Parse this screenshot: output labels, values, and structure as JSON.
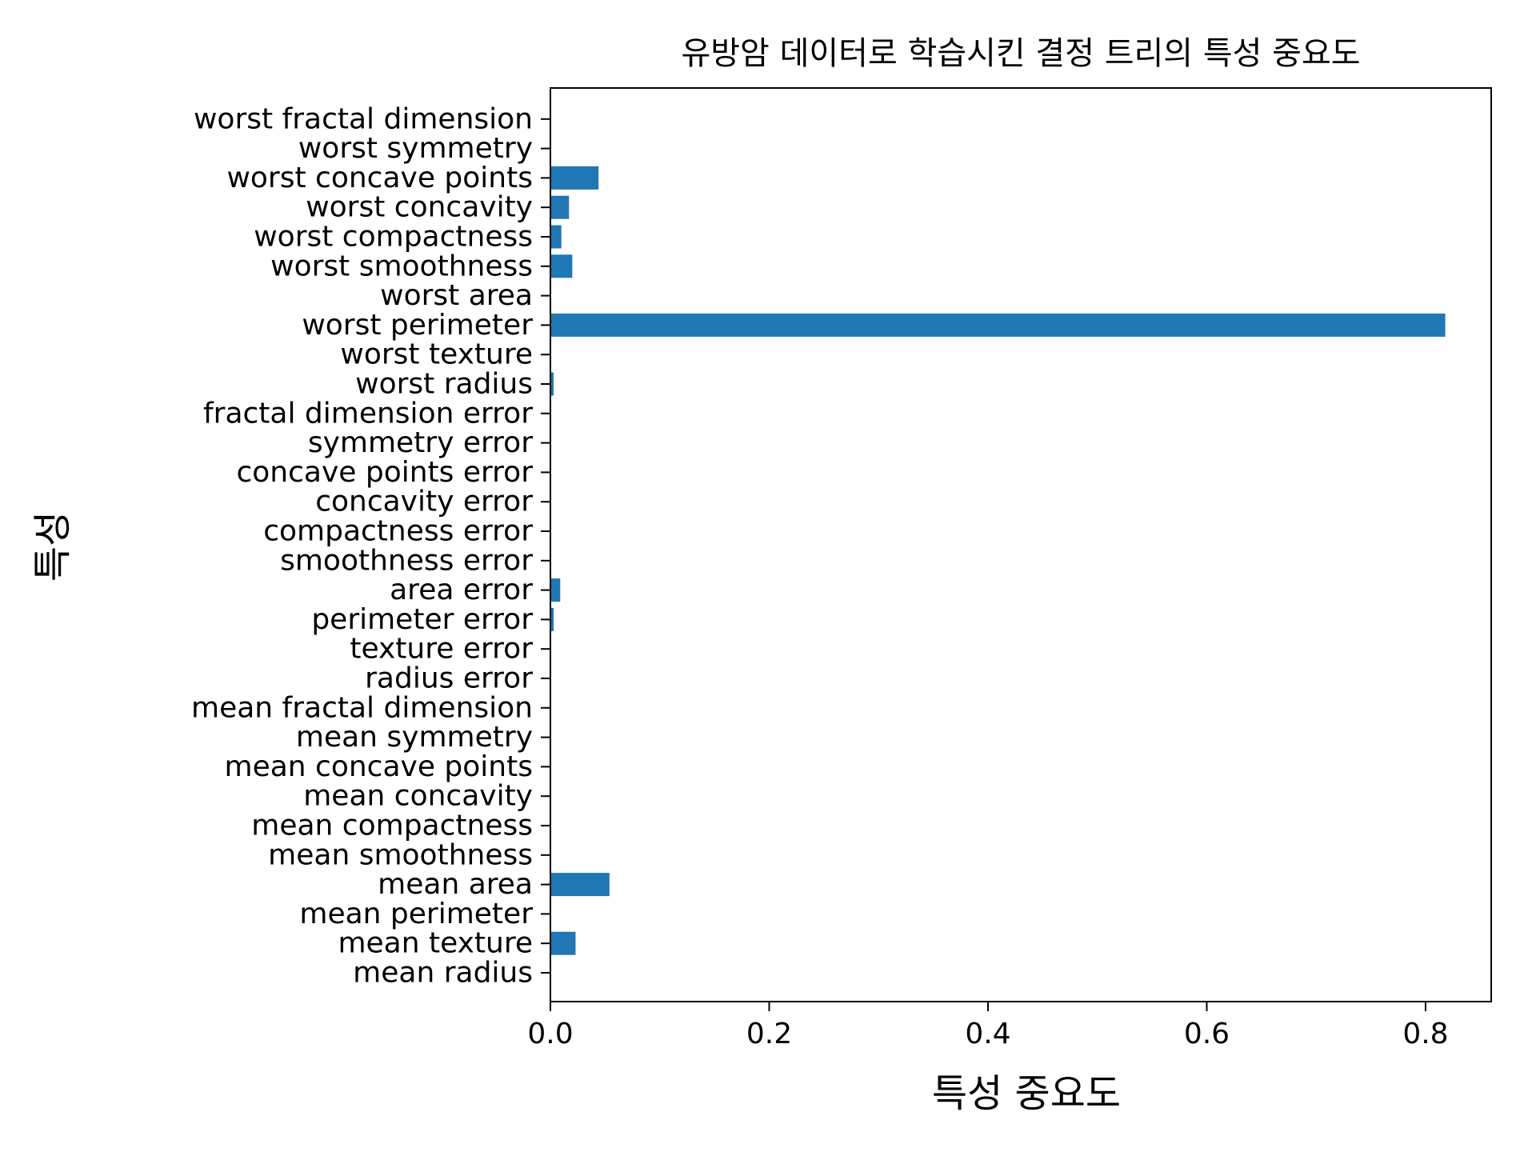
{
  "chart_data": {
    "type": "bar",
    "orientation": "horizontal",
    "title": "유방암 데이터로 학습시킨 결정 트리의 특성 중요도",
    "xlabel": "특성 중요도",
    "ylabel": "특성",
    "xlim": [
      0,
      0.86
    ],
    "xticks": [
      "0.0",
      "0.2",
      "0.4",
      "0.6",
      "0.8"
    ],
    "grid": false,
    "bar_color": "#1f77b4",
    "categories": [
      "mean radius",
      "mean texture",
      "mean perimeter",
      "mean area",
      "mean smoothness",
      "mean compactness",
      "mean concavity",
      "mean concave points",
      "mean symmetry",
      "mean fractal dimension",
      "radius error",
      "texture error",
      "perimeter error",
      "area error",
      "smoothness error",
      "compactness error",
      "concavity error",
      "concave points error",
      "symmetry error",
      "fractal dimension error",
      "worst radius",
      "worst texture",
      "worst perimeter",
      "worst area",
      "worst smoothness",
      "worst compactness",
      "worst concavity",
      "worst concave points",
      "worst symmetry",
      "worst fractal dimension"
    ],
    "values": [
      0,
      0.023,
      0,
      0.054,
      0,
      0,
      0,
      0,
      0,
      0,
      0,
      0,
      0.003,
      0.009,
      0,
      0,
      0,
      0,
      0,
      0,
      0.003,
      0,
      0.818,
      0,
      0.02,
      0.01,
      0.017,
      0.044,
      0,
      0
    ]
  }
}
